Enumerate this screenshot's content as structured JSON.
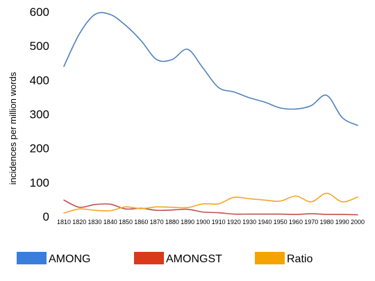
{
  "chart_data": {
    "type": "line",
    "title": "",
    "xlabel": "",
    "ylabel": "incidences per million words",
    "ylim": [
      0,
      600
    ],
    "yticks": [
      0,
      100,
      200,
      300,
      400,
      500,
      600
    ],
    "grid": false,
    "legend_position": "bottom",
    "x": [
      1810,
      1820,
      1830,
      1840,
      1850,
      1860,
      1870,
      1880,
      1890,
      1900,
      1910,
      1920,
      1930,
      1940,
      1950,
      1960,
      1970,
      1980,
      1990,
      2000
    ],
    "series": [
      {
        "name": "AMONG",
        "color": "#4f81bd",
        "values": [
          440,
          535,
          592,
          592,
          560,
          515,
          460,
          460,
          490,
          435,
          378,
          365,
          348,
          335,
          318,
          315,
          325,
          355,
          290,
          267
        ]
      },
      {
        "name": "AMONGST",
        "color": "#c0504d",
        "values": [
          48,
          27,
          35,
          36,
          22,
          24,
          18,
          19,
          21,
          13,
          11,
          7,
          7,
          7,
          7,
          6,
          8,
          6,
          6,
          5
        ]
      },
      {
        "name": "Ratio",
        "color": "#f3a623",
        "values": [
          10,
          22,
          18,
          17,
          28,
          23,
          28,
          27,
          26,
          37,
          37,
          56,
          52,
          48,
          45,
          60,
          43,
          68,
          43,
          57
        ]
      }
    ],
    "legend_colors": {
      "AMONG": "#3b7ddd",
      "AMONGST": "#d93a1a",
      "Ratio": "#f5a300"
    }
  }
}
